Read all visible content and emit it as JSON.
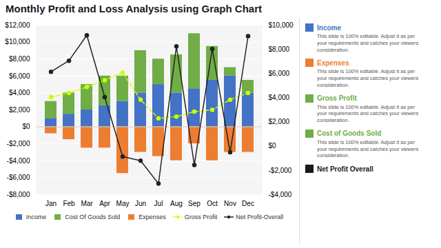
{
  "chart_data": {
    "type": "bar",
    "title": "Monthly Profit and Loss Analysis using Graph Chart",
    "categories": [
      "Jan",
      "Feb",
      "Mar",
      "Apr",
      "May",
      "Jun",
      "Jul",
      "Aug",
      "Sep",
      "Oct",
      "Nov",
      "Dec"
    ],
    "series": [
      {
        "name": "Income",
        "type": "bar",
        "color": "#4472C4",
        "values": [
          1000,
          1500,
          2000,
          2500,
          3000,
          4000,
          5000,
          4000,
          4500,
          5500,
          6000,
          4000
        ]
      },
      {
        "name": "Cost Of Goods Sold",
        "type": "bar",
        "color": "#70AD47",
        "values": [
          2000,
          2500,
          3000,
          3500,
          3000,
          5000,
          3000,
          4500,
          6500,
          4000,
          1000,
          1500
        ]
      },
      {
        "name": "Expenses",
        "type": "bar",
        "color": "#ED7D31",
        "values": [
          -800,
          -1500,
          -2500,
          -2500,
          -5500,
          -3000,
          -3500,
          -4000,
          -2000,
          -4000,
          -3000,
          -3000
        ]
      },
      {
        "name": "Gross Profit",
        "type": "line",
        "color": "#CCFF00",
        "marker": "circle",
        "line_style": "dashed",
        "values": [
          3500,
          4000,
          4700,
          5500,
          6400,
          3200,
          1000,
          1200,
          1800,
          2000,
          3200,
          4000
        ]
      },
      {
        "name": "Net Profit-Overall",
        "type": "line",
        "color": "#222222",
        "marker": "circle",
        "line_style": "solid",
        "values": [
          6500,
          7800,
          10800,
          3500,
          -3500,
          -4000,
          -6700,
          9500,
          -4500,
          9200,
          -3000,
          10700
        ]
      }
    ],
    "stacked": true,
    "ylim": [
      -8000,
      12000
    ],
    "yticks": [
      {
        "value": -8000,
        "label": "-$8,000"
      },
      {
        "value": -6000,
        "label": "-$6,000"
      },
      {
        "value": -4000,
        "label": "-$4,000"
      },
      {
        "value": -2000,
        "label": "-$2,000"
      },
      {
        "value": 0,
        "label": "$0"
      },
      {
        "value": 2000,
        "label": "$2,000"
      },
      {
        "value": 4000,
        "label": "$4,000"
      },
      {
        "value": 6000,
        "label": "$6,000"
      },
      {
        "value": 8000,
        "label": "$8,000"
      },
      {
        "value": 10000,
        "label": "$10,000"
      },
      {
        "value": 12000,
        "label": "$12,000"
      }
    ],
    "y2lim": [
      -4000,
      10000
    ],
    "y2ticks": [
      {
        "value": -4000,
        "label": "-$4,000"
      },
      {
        "value": -2000,
        "label": "-$2,000"
      },
      {
        "value": 0,
        "label": "$0"
      },
      {
        "value": 2000,
        "label": "$2,000"
      },
      {
        "value": 4000,
        "label": "$4,000"
      },
      {
        "value": 6000,
        "label": "$6,000"
      },
      {
        "value": 8000,
        "label": "$8,000"
      },
      {
        "value": 10000,
        "label": "$10,000"
      }
    ],
    "grid": true,
    "legend": "bottom",
    "annotations": [
      {
        "text": "Income",
        "color": "#4472C4"
      },
      {
        "text": "This slide is 100% editable. Adjust it as per\nyour requirements and catches your viewers\nconsideration."
      },
      {
        "text": "Expenses",
        "color": "#ED7D31"
      },
      {
        "text": "This slide is 100% editable. Adjust it as per\nyour requirements and catches your viewers\nconsideration."
      },
      {
        "text": "Gross Profit",
        "color": "#70AD47"
      },
      {
        "text": "This slide is 100% editable. Adjust it as per\nyour requirements and catches your viewers\nconsideration."
      },
      {
        "text": "Cost of Goods Sold",
        "color": "#70AD47"
      },
      {
        "text": "This slide is 100% editable. Adjust it as per\nyour requirements and catches your viewers\nconsideration."
      },
      {
        "text": "Net Profit Overall",
        "color": "#1A1A1A"
      }
    ]
  }
}
